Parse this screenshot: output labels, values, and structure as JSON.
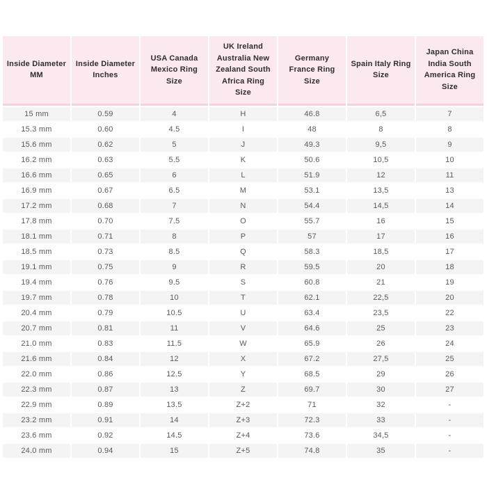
{
  "colors": {
    "header_bg": "#fce9f0",
    "header_border": "#f5d0dd",
    "header_text": "#2e2e2e",
    "row_alt_bg": "#f5f4f5",
    "row_bg": "#ffffff",
    "cell_text": "#5a5a5a"
  },
  "table": {
    "headers": [
      "Inside Diameter MM",
      "Inside Diameter Inches",
      "USA Canada Mexico Ring Size",
      "UK Ireland Australia New Zealand South Africa Ring Size",
      "Germany France Ring Size",
      "Spain Italy Ring Size",
      "Japan China India South America Ring Size"
    ],
    "rows": [
      [
        "15 mm",
        "0.59",
        "4",
        "H",
        "46.8",
        "6,5",
        "7"
      ],
      [
        "15.3 mm",
        "0.60",
        "4.5",
        "I",
        "48",
        "8",
        "8"
      ],
      [
        "15.6 mm",
        "0.62",
        "5",
        "J",
        "49.3",
        "9,5",
        "9"
      ],
      [
        "16.2 mm",
        "0.63",
        "5.5",
        "K",
        "50.6",
        "10,5",
        "10"
      ],
      [
        "16.6 mm",
        "0.65",
        "6",
        "L",
        "51.9",
        "12",
        "11"
      ],
      [
        "16.9 mm",
        "0.67",
        "6.5",
        "M",
        "53.1",
        "13,5",
        "13"
      ],
      [
        "17.2 mm",
        "0.68",
        "7",
        "N",
        "54.4",
        "14,5",
        "14"
      ],
      [
        "17.8 mm",
        "0.70",
        "7.5",
        "O",
        "55.7",
        "16",
        "15"
      ],
      [
        "18.1 mm",
        "0.71",
        "8",
        "P",
        "57",
        "17",
        "16"
      ],
      [
        "18.5 mm",
        "0.73",
        "8.5",
        "Q",
        "58.3",
        "18,5",
        "17"
      ],
      [
        "19.1 mm",
        "0.75",
        "9",
        "R",
        "59.5",
        "20",
        "18"
      ],
      [
        "19.4 mm",
        "0.76",
        "9.5",
        "S",
        "60.8",
        "21",
        "19"
      ],
      [
        "19.7 mm",
        "0.78",
        "10",
        "T",
        "62.1",
        "22,5",
        "20"
      ],
      [
        "20.4 mm",
        "0.79",
        "10.5",
        "U",
        "63.4",
        "23,5",
        "22"
      ],
      [
        "20.7 mm",
        "0.81",
        "11",
        "V",
        "64.6",
        "25",
        "23"
      ],
      [
        "21.0 mm",
        "0.83",
        "11.5",
        "W",
        "65.9",
        "26",
        "24"
      ],
      [
        "21.6 mm",
        "0.84",
        "12",
        "X",
        "67.2",
        "27,5",
        "25"
      ],
      [
        "22.0 mm",
        "0.86",
        "12.5",
        "Y",
        "68.5",
        "29",
        "26"
      ],
      [
        "22.3 mm",
        "0.87",
        "13",
        "Z",
        "69.7",
        "30",
        "27"
      ],
      [
        "22.9 mm",
        "0.89",
        "13.5",
        "Z+2",
        "71",
        "32",
        "-"
      ],
      [
        "23.2 mm",
        "0.91",
        "14",
        "Z+3",
        "72.3",
        "33",
        "-"
      ],
      [
        "23.6 mm",
        "0.92",
        "14.5",
        "Z+4",
        "73.6",
        "34,5",
        "-"
      ],
      [
        "24.0 mm",
        "0.94",
        "15",
        "Z+5",
        "74.8",
        "35",
        "-"
      ]
    ]
  }
}
